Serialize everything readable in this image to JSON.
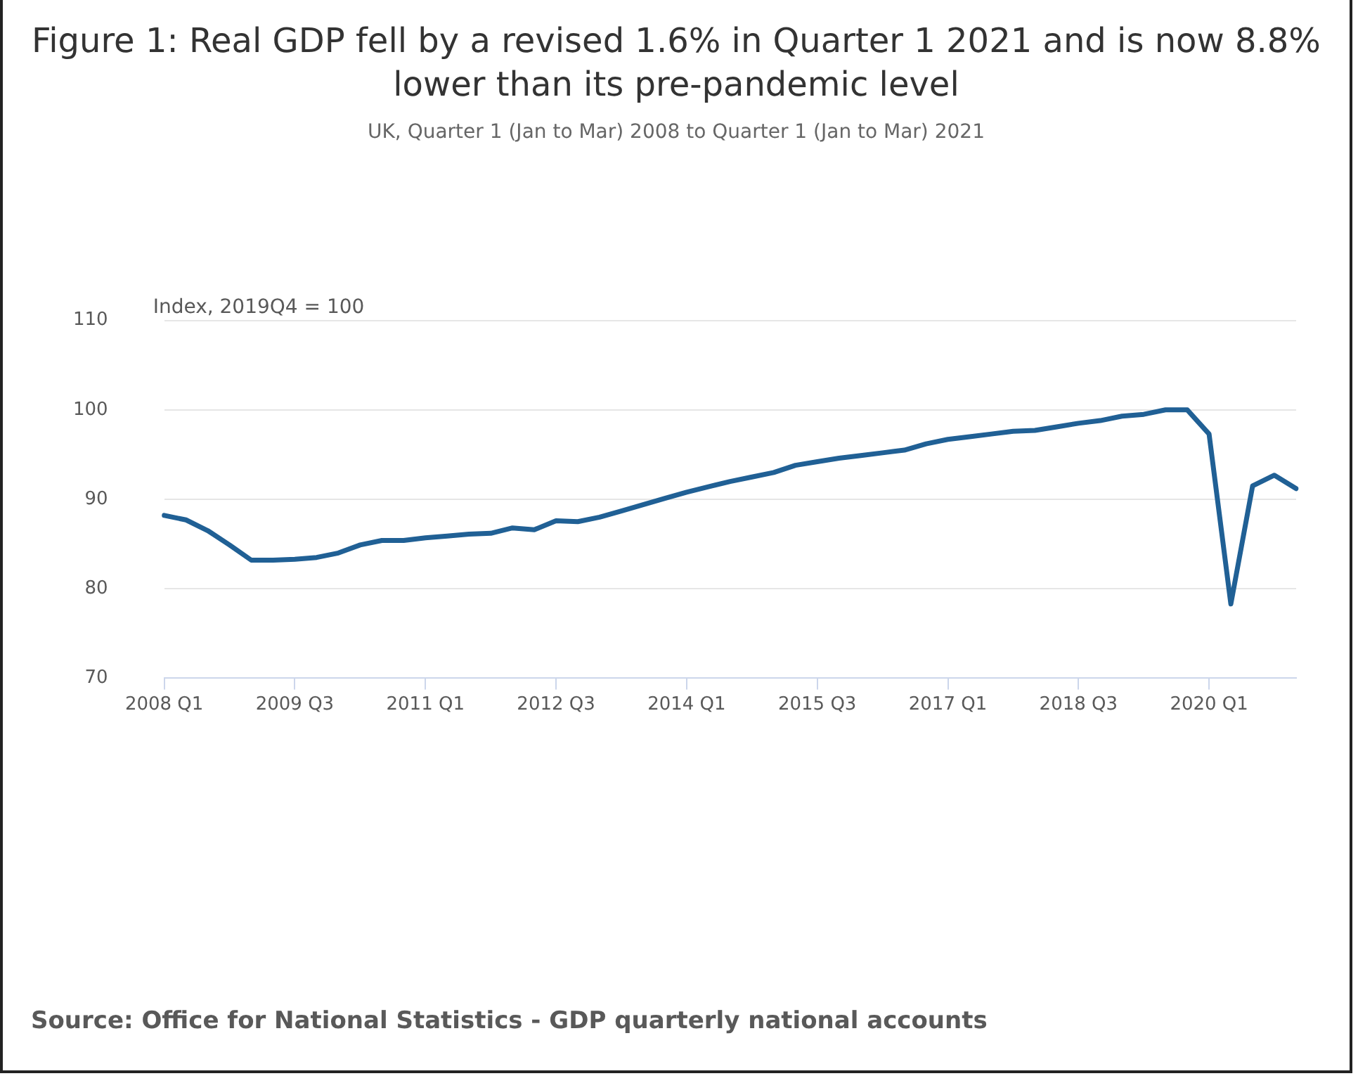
{
  "chart_data": {
    "type": "line",
    "title": "Figure 1: Real GDP fell by a revised 1.6% in Quarter 1 2021 and is now 8.8% lower than its pre-pandemic level",
    "subtitle": "UK, Quarter 1 (Jan to Mar) 2008 to Quarter 1 (Jan to Mar) 2021",
    "ylabel": "Index, 2019Q4 = 100",
    "annotations": [
      "Source: Office for National Statistics - GDP quarterly national accounts"
    ],
    "categories": [
      "2008 Q1",
      null,
      null,
      null,
      null,
      null,
      "2009 Q3",
      null,
      null,
      null,
      null,
      null,
      "2011 Q1",
      null,
      null,
      null,
      null,
      null,
      "2012 Q3",
      null,
      null,
      null,
      null,
      null,
      "2014 Q1",
      null,
      null,
      null,
      null,
      null,
      "2015 Q3",
      null,
      null,
      null,
      null,
      null,
      "2017 Q1",
      null,
      null,
      null,
      null,
      null,
      "2018 Q3",
      null,
      null,
      null,
      null,
      null,
      "2020 Q1",
      null,
      null,
      null,
      null
    ],
    "series": [
      {
        "color": "#206095",
        "values": [
          88.2,
          87.7,
          86.5,
          84.9,
          83.2,
          83.2,
          83.3,
          83.5,
          84.0,
          84.9,
          85.4,
          85.4,
          85.7,
          85.9,
          86.1,
          86.2,
          86.8,
          86.6,
          87.6,
          87.5,
          88.0,
          88.7,
          89.4,
          90.1,
          90.8,
          91.4,
          92.0,
          92.5,
          93.0,
          93.8,
          94.2,
          94.6,
          94.9,
          95.2,
          95.5,
          96.2,
          96.7,
          97.0,
          97.3,
          97.6,
          97.7,
          98.1,
          98.5,
          98.8,
          99.3,
          99.5,
          100.0,
          100.0,
          97.3,
          78.3,
          91.5,
          92.7,
          91.2
        ]
      }
    ],
    "ylim": [
      70,
      110
    ],
    "yticks": [
      70,
      80,
      90,
      100,
      110
    ],
    "grid": "y",
    "legend": false,
    "marker": "none",
    "line_style": "solid"
  }
}
